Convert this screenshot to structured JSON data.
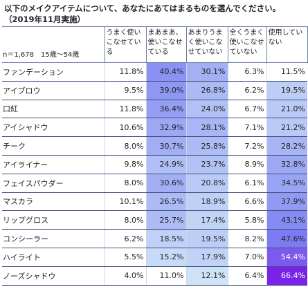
{
  "title": "以下のメイクアイテムについて、あなたにあてはまるものを選んでください。",
  "subtitle": "（2019年11月実施）",
  "sample_note": "n＝1,678　15歳～54歳",
  "chart_data": {
    "type": "table",
    "columns": [
      "うまく使いこなせている",
      "まあまあ、使いこなせている",
      "あまりうまく使いこなせていない",
      "全くうまく使いこなせていない",
      "使用していない"
    ],
    "rows": [
      {
        "label": "ファンデーション",
        "values": [
          "11.8%",
          "40.4%",
          "30.1%",
          "6.3%",
          "11.5%"
        ]
      },
      {
        "label": "アイブロウ",
        "values": [
          "9.5%",
          "39.0%",
          "26.8%",
          "6.2%",
          "19.5%"
        ]
      },
      {
        "label": "口紅",
        "values": [
          "11.8%",
          "36.4%",
          "24.0%",
          "6.7%",
          "21.0%"
        ]
      },
      {
        "label": "アイシャドウ",
        "values": [
          "10.6%",
          "32.9%",
          "28.1%",
          "7.1%",
          "21.2%"
        ]
      },
      {
        "label": "チーク",
        "values": [
          "8.0%",
          "30.7%",
          "25.8%",
          "7.2%",
          "28.2%"
        ]
      },
      {
        "label": "アイライナー",
        "values": [
          "9.8%",
          "24.9%",
          "23.7%",
          "8.9%",
          "32.8%"
        ]
      },
      {
        "label": "フェイスパウダー",
        "values": [
          "8.0%",
          "30.6%",
          "20.8%",
          "6.1%",
          "34.5%"
        ]
      },
      {
        "label": "マスカラ",
        "values": [
          "10.1%",
          "26.5%",
          "18.9%",
          "6.6%",
          "37.9%"
        ]
      },
      {
        "label": "リップグロス",
        "values": [
          "8.0%",
          "25.7%",
          "17.4%",
          "5.8%",
          "43.1%"
        ]
      },
      {
        "label": "コンシーラー",
        "values": [
          "6.2%",
          "18.5%",
          "19.5%",
          "8.2%",
          "47.6%"
        ]
      },
      {
        "label": "ハイライト",
        "values": [
          "5.5%",
          "15.2%",
          "17.9%",
          "7.0%",
          "54.4%"
        ]
      },
      {
        "label": "ノーズシャドウ",
        "values": [
          "4.0%",
          "11.0%",
          "12.1%",
          "6.4%",
          "66.4%"
        ]
      }
    ],
    "heat_colors": {
      "low": "#cfe3f7",
      "mid": "#7f86f2",
      "high": "#7a1fe8"
    }
  }
}
